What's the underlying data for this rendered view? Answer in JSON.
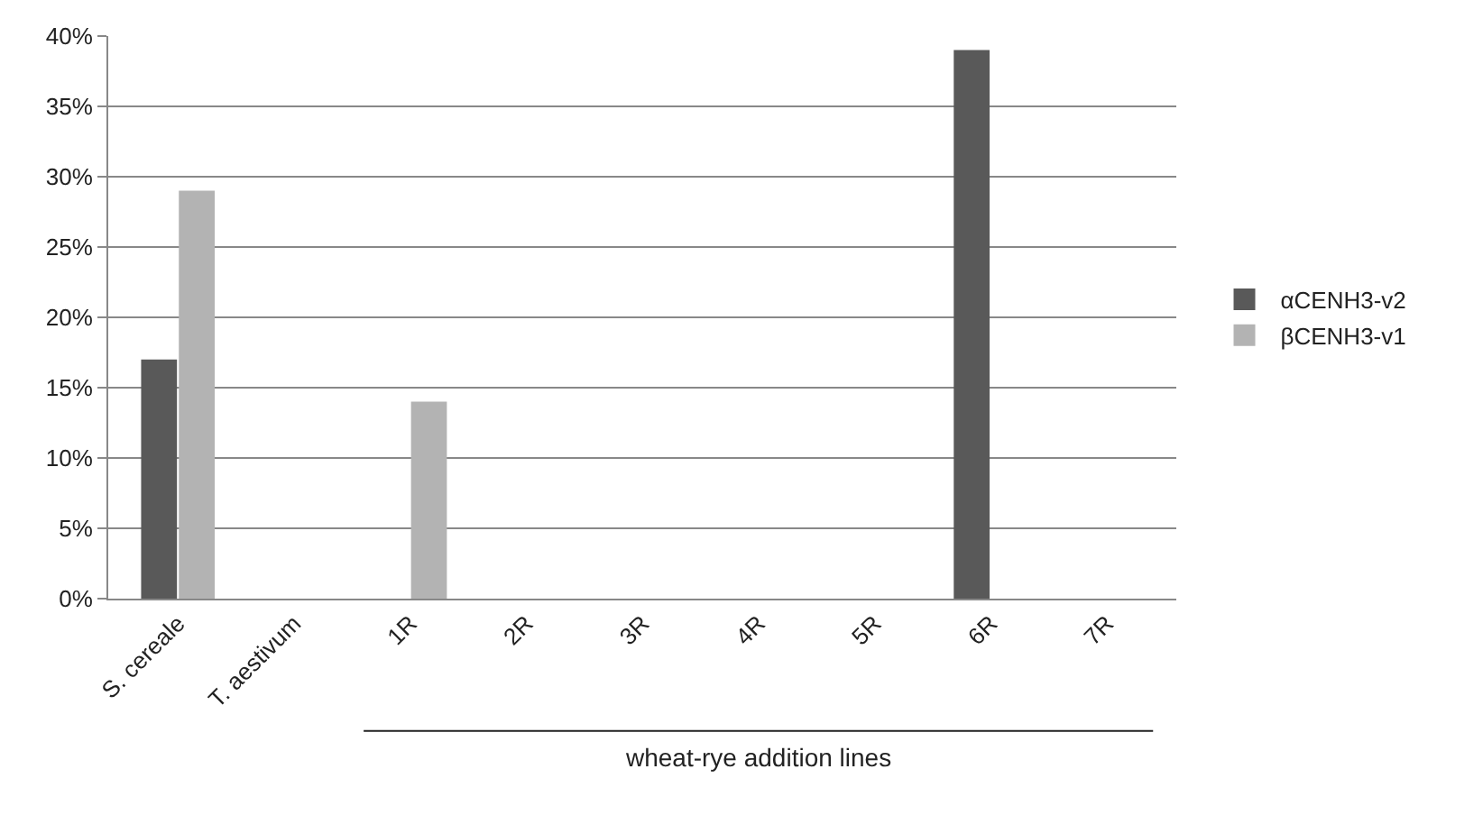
{
  "chart_data": {
    "type": "bar",
    "categories": [
      "S. cereale",
      "T. aestivum",
      "1R",
      "2R",
      "3R",
      "4R",
      "5R",
      "6R",
      "7R"
    ],
    "series": [
      {
        "name": "αCENH3-v2",
        "color": "#595959",
        "values": [
          17,
          0,
          0,
          0,
          0,
          0,
          0,
          39,
          0
        ]
      },
      {
        "name": "βCENH3-v1",
        "color": "#b3b3b3",
        "values": [
          29,
          0,
          14,
          0,
          0,
          0,
          0,
          0,
          0
        ]
      }
    ],
    "ylim": [
      0,
      40
    ],
    "yticks": [
      {
        "value": 0,
        "label": "0%"
      },
      {
        "value": 5,
        "label": "5%"
      },
      {
        "value": 10,
        "label": "10%"
      },
      {
        "value": 15,
        "label": "15%"
      },
      {
        "value": 20,
        "label": "20%"
      },
      {
        "value": 25,
        "label": "25%"
      },
      {
        "value": 30,
        "label": "30%"
      },
      {
        "value": 35,
        "label": "35%"
      },
      {
        "value": 40,
        "label": "40%"
      }
    ],
    "grid": "y",
    "legend": "right",
    "annotations": [
      "wheat-rye addition lines"
    ]
  }
}
